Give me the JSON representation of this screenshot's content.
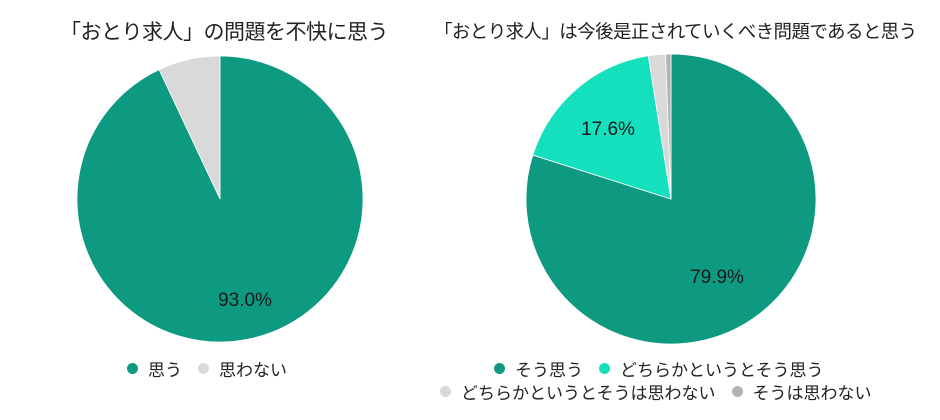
{
  "chart_data": [
    {
      "type": "pie",
      "title": "「おとり求人」の問題を不快に思う",
      "categories": [
        "思う",
        "思わない"
      ],
      "values": [
        93.0,
        7.0
      ],
      "colors": [
        "#0e9a80",
        "#d9d9d9"
      ],
      "data_labels": [
        "93.0%",
        ""
      ],
      "start_angle": "12 o'clock, clockwise",
      "legend_position": "bottom"
    },
    {
      "type": "pie",
      "title": "「おとり求人」は今後是正されていくべき問題であると思う",
      "categories": [
        "そう思う",
        "どちらかというとそう思う",
        "どちらかというとそうは思わない",
        "そうは思わない"
      ],
      "values": [
        79.9,
        17.6,
        1.9,
        0.6
      ],
      "colors": [
        "#0e9a80",
        "#14e0bd",
        "#d9d9d9",
        "#b3b3b3"
      ],
      "data_labels": [
        "79.9%",
        "17.6%",
        "",
        ""
      ],
      "start_angle": "12 o'clock, clockwise",
      "legend_position": "bottom"
    }
  ],
  "left": {
    "title": "「おとり求人」の問題を不快に思う",
    "label_main": "93.0%",
    "legend": [
      {
        "label": "思う",
        "color": "#0e9a80"
      },
      {
        "label": "思わない",
        "color": "#d9d9d9"
      }
    ]
  },
  "right": {
    "title": "「おとり求人」は今後是正されていくべき問題であると思う",
    "label_main": "79.9%",
    "label_second": "17.6%",
    "legend": [
      {
        "label": "そう思う",
        "color": "#0e9a80"
      },
      {
        "label": "どちらかというとそう思う",
        "color": "#14e0bd"
      },
      {
        "label": "どちらかというとそうは思わない",
        "color": "#d9d9d9"
      },
      {
        "label": "そうは思わない",
        "color": "#b3b3b3"
      }
    ]
  }
}
